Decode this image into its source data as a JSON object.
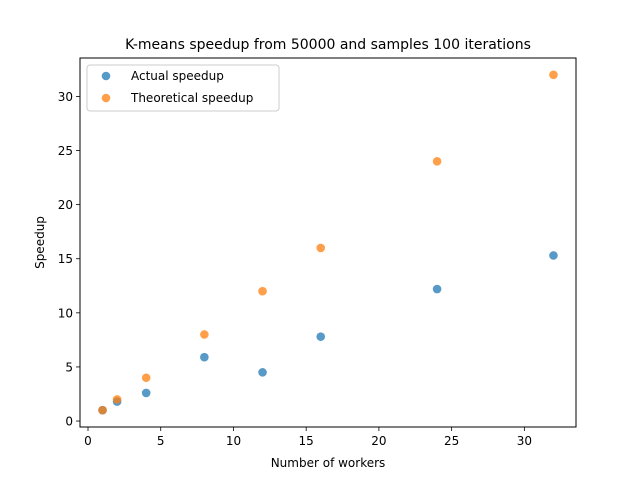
{
  "chart_data": {
    "type": "scatter",
    "title": "K-means speedup from 50000 and samples 100 iterations",
    "xlabel": "Number of workers",
    "ylabel": "Speedup",
    "xlim": [
      -0.55,
      33.55
    ],
    "ylim": [
      -0.55,
      33.55
    ],
    "xticks": [
      0,
      5,
      10,
      15,
      20,
      25,
      30
    ],
    "yticks": [
      0,
      5,
      10,
      15,
      20,
      25,
      30
    ],
    "grid": false,
    "legend_position": "upper-left",
    "series": [
      {
        "name": "Actual speedup",
        "color": "#1f77b4",
        "x": [
          1,
          2,
          4,
          8,
          12,
          16,
          24,
          32
        ],
        "y": [
          1.0,
          1.8,
          2.6,
          5.9,
          4.5,
          7.8,
          12.2,
          15.3
        ]
      },
      {
        "name": "Theoretical speedup",
        "color": "#ff7f0e",
        "x": [
          1,
          2,
          4,
          8,
          12,
          16,
          24,
          32
        ],
        "y": [
          1,
          2,
          4,
          8,
          12,
          16,
          24,
          32
        ]
      }
    ]
  }
}
